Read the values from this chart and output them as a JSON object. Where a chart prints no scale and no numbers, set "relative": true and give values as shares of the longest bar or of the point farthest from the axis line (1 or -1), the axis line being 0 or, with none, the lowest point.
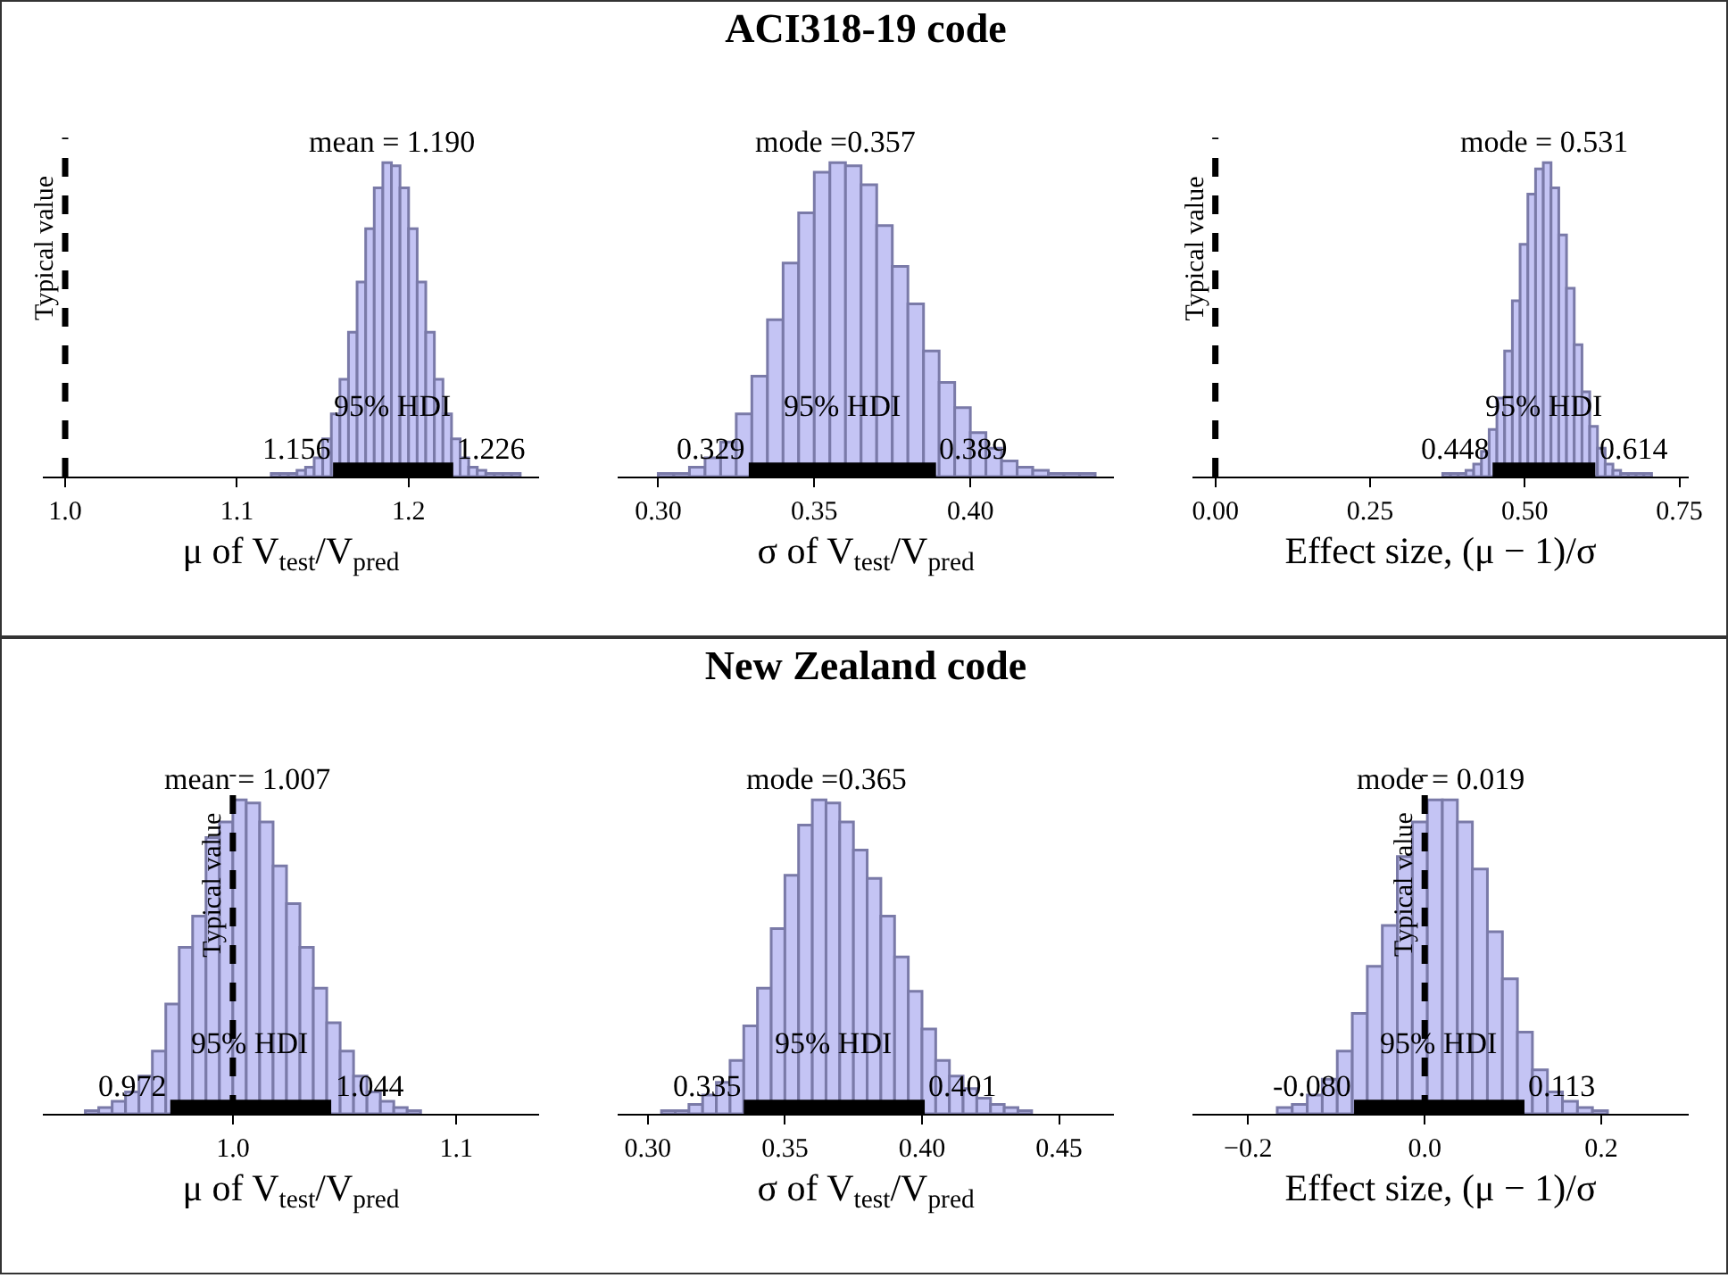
{
  "chart_data": [
    {
      "type": "bar",
      "relative": true,
      "xlabel": "μ of V$_{test}$/V$_{pred}$",
      "color": "#c4c4f4",
      "x": [
        1.1225,
        1.1275,
        1.1325,
        1.1375,
        1.1425,
        1.1475,
        1.1525,
        1.1575,
        1.1625,
        1.1675,
        1.1725,
        1.1775,
        1.1825,
        1.1875,
        1.1925,
        1.1975,
        1.2025,
        1.2075,
        1.2125,
        1.2175,
        1.2225,
        1.2275,
        1.2325,
        1.2375,
        1.2425,
        1.2475,
        1.2525,
        1.2575,
        1.2625
      ],
      "values": [
        0.01,
        0.01,
        0.01,
        0.02,
        0.03,
        0.06,
        0.12,
        0.2,
        0.31,
        0.46,
        0.62,
        0.79,
        0.92,
        1.0,
        0.99,
        0.92,
        0.79,
        0.62,
        0.46,
        0.31,
        0.2,
        0.12,
        0.06,
        0.03,
        0.02,
        0.01,
        0.01,
        0.01,
        0.01
      ],
      "xlim": [
        0.987,
        1.276
      ],
      "xticks": [
        {
          "value": 1.0,
          "label": "1.0"
        },
        {
          "value": 1.1,
          "label": "1.1"
        },
        {
          "value": 1.2,
          "label": "1.2"
        }
      ],
      "ref_lines": [
        {
          "axis": "x",
          "value": 1.0,
          "label": "Typical value",
          "line_style": "dashed",
          "color": "#000000"
        }
      ],
      "bands": [
        {
          "axis": "x",
          "from": 1.156,
          "to": 1.226,
          "label": "95% HDI",
          "color": "#000000"
        }
      ],
      "annotations": [
        {
          "text": "mean = 1.190",
          "x": 1.19,
          "y": 1.0
        },
        {
          "text": "1.156",
          "x": 1.156,
          "y": 0.02
        },
        {
          "text": "1.226",
          "x": 1.226,
          "y": 0.02
        }
      ]
    },
    {
      "type": "bar",
      "relative": true,
      "title": "ACI318-19 code",
      "xlabel": "σ of V$_{test}$/V$_{pred}$",
      "color": "#c4c4f4",
      "x": [
        0.3025,
        0.3075,
        0.3125,
        0.3175,
        0.3225,
        0.3275,
        0.3325,
        0.3375,
        0.3425,
        0.3475,
        0.3525,
        0.3575,
        0.3625,
        0.3675,
        0.3725,
        0.3775,
        0.3825,
        0.3875,
        0.3925,
        0.3975,
        0.4025,
        0.4075,
        0.4125,
        0.4175,
        0.4225,
        0.4275,
        0.4325,
        0.4375
      ],
      "values": [
        0.01,
        0.01,
        0.03,
        0.06,
        0.11,
        0.2,
        0.32,
        0.5,
        0.68,
        0.84,
        0.97,
        1.0,
        0.99,
        0.93,
        0.8,
        0.67,
        0.55,
        0.4,
        0.3,
        0.22,
        0.14,
        0.09,
        0.05,
        0.03,
        0.02,
        0.01,
        0.01,
        0.01
      ],
      "xlim": [
        0.287,
        0.446
      ],
      "xticks": [
        {
          "value": 0.3,
          "label": "0.30"
        },
        {
          "value": 0.35,
          "label": "0.35"
        },
        {
          "value": 0.4,
          "label": "0.40"
        }
      ],
      "bands": [
        {
          "axis": "x",
          "from": 0.329,
          "to": 0.389,
          "label": "95% HDI",
          "color": "#000000"
        }
      ],
      "annotations": [
        {
          "text": "mode =0.357",
          "x": 0.357,
          "y": 1.0
        },
        {
          "text": "0.329",
          "x": 0.329,
          "y": 0.02
        },
        {
          "text": "0.389",
          "x": 0.389,
          "y": 0.02
        }
      ]
    },
    {
      "type": "bar",
      "relative": true,
      "xlabel": "Effect size, (μ − 1)/σ",
      "color": "#c4c4f4",
      "x": [
        0.37375,
        0.38625,
        0.39875,
        0.41125,
        0.42375,
        0.43625,
        0.44875,
        0.46125,
        0.47375,
        0.48625,
        0.49875,
        0.51125,
        0.52375,
        0.53625,
        0.54875,
        0.56125,
        0.57375,
        0.58625,
        0.59875,
        0.61125,
        0.62375,
        0.63625,
        0.64875,
        0.66125,
        0.67375,
        0.68625,
        0.69875
      ],
      "values": [
        0.01,
        0.01,
        0.01,
        0.02,
        0.04,
        0.08,
        0.15,
        0.25,
        0.4,
        0.56,
        0.74,
        0.9,
        0.98,
        1.0,
        0.92,
        0.77,
        0.6,
        0.42,
        0.27,
        0.16,
        0.09,
        0.04,
        0.02,
        0.01,
        0.01,
        0.01,
        0.01
      ],
      "xlim": [
        -0.037,
        0.765
      ],
      "xticks": [
        {
          "value": 0,
          "label": "0.00"
        },
        {
          "value": 0.25,
          "label": "0.25"
        },
        {
          "value": 0.5,
          "label": "0.50"
        },
        {
          "value": 0.75,
          "label": "0.75"
        }
      ],
      "ref_lines": [
        {
          "axis": "x",
          "value": 0,
          "label": "Typical value",
          "line_style": "dashed",
          "color": "#000000"
        }
      ],
      "bands": [
        {
          "axis": "x",
          "from": 0.448,
          "to": 0.614,
          "label": "95% HDI",
          "color": "#000000"
        }
      ],
      "annotations": [
        {
          "text": "mode = 0.531",
          "x": 0.531,
          "y": 1.0
        },
        {
          "text": "0.448",
          "x": 0.448,
          "y": 0.02
        },
        {
          "text": "0.614",
          "x": 0.614,
          "y": 0.02
        }
      ]
    },
    {
      "type": "bar",
      "relative": true,
      "xlabel": "μ of V$_{test}$/V$_{pred}$",
      "color": "#c4c4f4",
      "x": [
        0.937,
        0.943,
        0.949,
        0.955,
        0.961,
        0.967,
        0.973,
        0.979,
        0.985,
        0.991,
        0.997,
        1.003,
        1.009,
        1.015,
        1.021,
        1.027,
        1.033,
        1.039,
        1.045,
        1.051,
        1.057,
        1.063,
        1.069,
        1.075,
        1.081
      ],
      "values": [
        0.01,
        0.02,
        0.04,
        0.07,
        0.12,
        0.2,
        0.35,
        0.53,
        0.63,
        0.88,
        0.93,
        1.0,
        0.99,
        0.93,
        0.79,
        0.67,
        0.53,
        0.4,
        0.29,
        0.2,
        0.12,
        0.07,
        0.04,
        0.02,
        0.01
      ],
      "xlim": [
        0.915,
        1.137
      ],
      "xticks": [
        {
          "value": 1.0,
          "label": "1.0"
        },
        {
          "value": 1.1,
          "label": "1.1"
        }
      ],
      "ref_lines": [
        {
          "axis": "x",
          "value": 1.0,
          "label": "Typical value",
          "line_style": "dashed",
          "color": "#000000"
        }
      ],
      "bands": [
        {
          "axis": "x",
          "from": 0.972,
          "to": 1.044,
          "label": "95% HDI",
          "color": "#000000"
        }
      ],
      "annotations": [
        {
          "text": "mean = 1.007",
          "x": 1.007,
          "y": 1.0
        },
        {
          "text": "0.972",
          "x": 0.972,
          "y": 0.02
        },
        {
          "text": "1.044",
          "x": 1.044,
          "y": 0.02
        }
      ]
    },
    {
      "type": "bar",
      "relative": true,
      "title": "New Zealand code",
      "xlabel": "σ of V$_{test}$/V$_{pred}$",
      "color": "#c4c4f4",
      "x": [
        0.3075,
        0.3125,
        0.3175,
        0.3225,
        0.3275,
        0.3325,
        0.3375,
        0.3425,
        0.3475,
        0.3525,
        0.3575,
        0.3625,
        0.3675,
        0.3725,
        0.3775,
        0.3825,
        0.3875,
        0.3925,
        0.3975,
        0.4025,
        0.4075,
        0.4125,
        0.4175,
        0.4225,
        0.4275,
        0.4325,
        0.4375
      ],
      "values": [
        0.01,
        0.01,
        0.03,
        0.06,
        0.1,
        0.17,
        0.28,
        0.4,
        0.59,
        0.76,
        0.92,
        1.0,
        0.99,
        0.93,
        0.84,
        0.75,
        0.63,
        0.5,
        0.39,
        0.27,
        0.17,
        0.12,
        0.08,
        0.05,
        0.03,
        0.02,
        0.01
      ],
      "xlim": [
        0.289,
        0.47
      ],
      "xticks": [
        {
          "value": 0.3,
          "label": "0.30"
        },
        {
          "value": 0.35,
          "label": "0.35"
        },
        {
          "value": 0.4,
          "label": "0.40"
        },
        {
          "value": 0.45,
          "label": "0.45"
        }
      ],
      "bands": [
        {
          "axis": "x",
          "from": 0.335,
          "to": 0.401,
          "label": "95% HDI",
          "color": "#000000"
        }
      ],
      "annotations": [
        {
          "text": "mode =0.365",
          "x": 0.365,
          "y": 1.0
        },
        {
          "text": "0.335",
          "x": 0.335,
          "y": 0.02
        },
        {
          "text": "0.401",
          "x": 0.401,
          "y": 0.02
        }
      ]
    },
    {
      "type": "bar",
      "relative": true,
      "xlabel": "Effect size, (μ − 1)/σ",
      "color": "#c4c4f4",
      "x": [
        -0.1585,
        -0.1415,
        -0.1245,
        -0.1075,
        -0.0905,
        -0.0735,
        -0.0565,
        -0.0395,
        -0.0225,
        -0.0055,
        0.0115,
        0.0285,
        0.0455,
        0.0625,
        0.0795,
        0.0965,
        0.1135,
        0.1305,
        0.1475,
        0.1645,
        0.1815,
        0.1985
      ],
      "values": [
        0.02,
        0.03,
        0.06,
        0.11,
        0.2,
        0.32,
        0.47,
        0.6,
        0.82,
        0.93,
        1.0,
        1.0,
        0.93,
        0.78,
        0.58,
        0.43,
        0.26,
        0.14,
        0.07,
        0.04,
        0.02,
        0.01
      ],
      "xlim": [
        -0.263,
        0.299
      ],
      "xticks": [
        {
          "value": -0.2,
          "label": "−0.2"
        },
        {
          "value": 0,
          "label": "0.0"
        },
        {
          "value": 0.2,
          "label": "0.2"
        }
      ],
      "ref_lines": [
        {
          "axis": "x",
          "value": 0,
          "label": "Typical value",
          "line_style": "dashed",
          "color": "#000000"
        }
      ],
      "bands": [
        {
          "axis": "x",
          "from": -0.08,
          "to": 0.113,
          "label": "95% HDI",
          "color": "#000000"
        }
      ],
      "annotations": [
        {
          "text": "mode = 0.019",
          "x": 0.019,
          "y": 1.0
        },
        {
          "text": "-0.080",
          "x": -0.08,
          "y": 0.02
        },
        {
          "text": "0.113",
          "x": 0.113,
          "y": 0.02
        }
      ]
    }
  ]
}
